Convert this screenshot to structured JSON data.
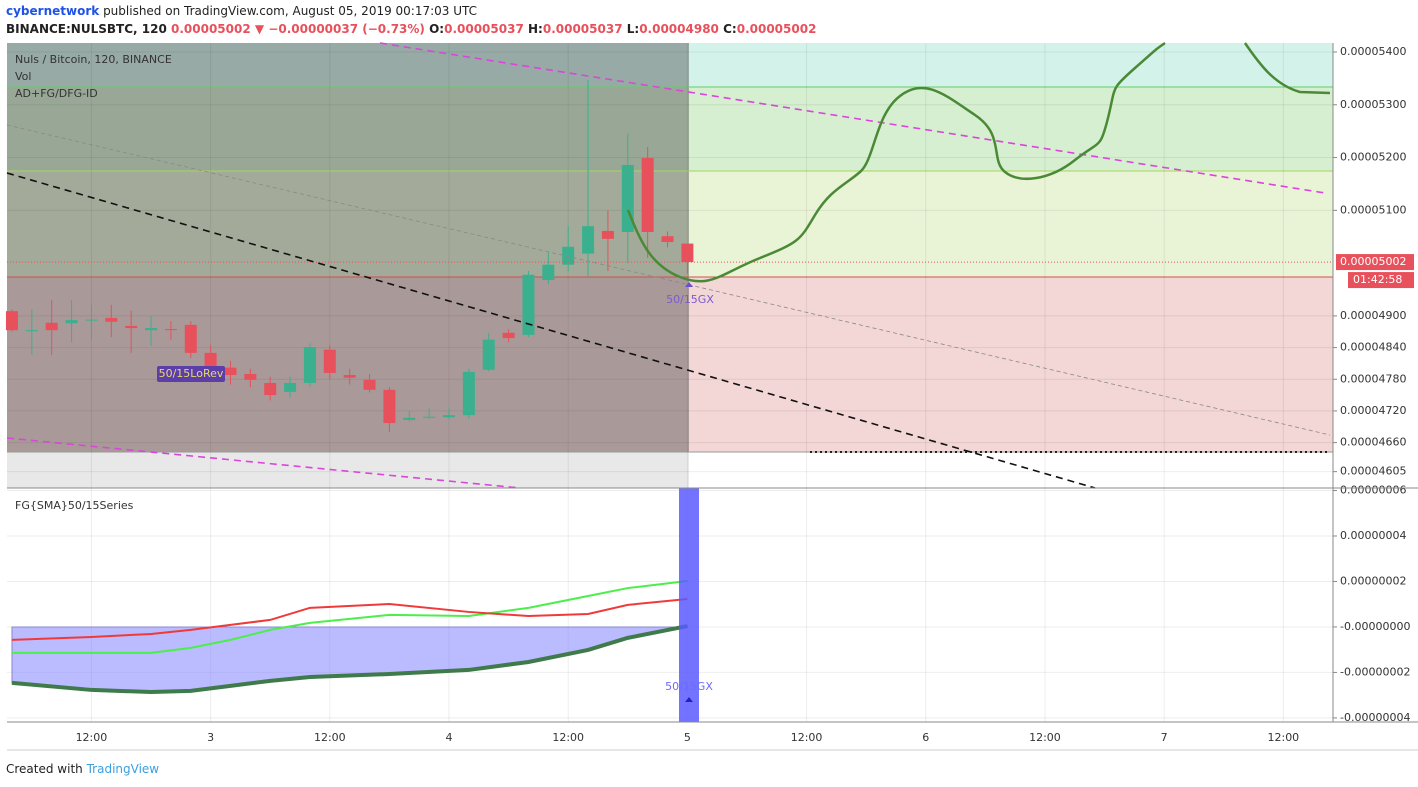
{
  "header": {
    "author": "cybernetwork",
    "published": "published on TradingView.com, August 05, 2019 00:17:03 UTC",
    "symbol": "BINANCE:NULSBTC, 120",
    "price": "0.00005002",
    "arrow": "▼",
    "change": "−0.00000037 (−0.73%)",
    "o_label": "O:",
    "o": "0.00005037",
    "h_label": "H:",
    "h": "0.00005037",
    "l_label": "L:",
    "l": "0.00004980",
    "c_label": "C:",
    "c": "0.00005002"
  },
  "footer": {
    "created": "Created with",
    "brand": "TradingView"
  },
  "chart_data": [
    {
      "type": "candlestick",
      "title": "Nuls / Bitcoin, 120, BINANCE",
      "indicators": [
        "Vol",
        "AD+FG/DFG-ID"
      ],
      "annotations": [
        "50/15LoRev",
        "50/15GX"
      ],
      "last_label": "0.00005002",
      "countdown": "01:42:58",
      "up_color": "#3bb08f",
      "down_color": "#e8505b",
      "grid": true,
      "x": [
        4,
        6,
        8,
        10,
        12,
        14,
        16,
        18,
        20,
        22,
        24,
        26,
        28,
        30,
        32,
        34,
        36,
        38,
        40,
        42,
        44,
        46,
        48,
        50,
        52,
        54,
        56,
        58,
        60,
        62,
        64,
        66,
        68,
        70,
        72
      ],
      "open": [
        4.909e-05,
        4.873e-05,
        4.887e-05,
        4.886e-05,
        4.892e-05,
        4.896e-05,
        4.881e-05,
        4.873e-05,
        4.875e-05,
        4.883e-05,
        4.83e-05,
        4.802e-05,
        4.79e-05,
        4.773e-05,
        4.756e-05,
        4.773e-05,
        4.836e-05,
        4.788e-05,
        4.779e-05,
        4.76e-05,
        4.703e-05,
        4.708e-05,
        4.708e-05,
        4.712e-05,
        4.798e-05,
        4.868e-05,
        4.864e-05,
        4.968e-05,
        4.997e-05,
        5.018e-05,
        5.061e-05,
        5.059e-05,
        5.199e-05,
        5.051e-05,
        5.037e-05
      ],
      "high": [
        4.912e-05,
        4.912e-05,
        4.93e-05,
        4.93e-05,
        4.921e-05,
        4.921e-05,
        4.91e-05,
        4.9e-05,
        4.89e-05,
        4.89e-05,
        4.845e-05,
        4.815e-05,
        4.8e-05,
        4.785e-05,
        4.785e-05,
        4.848e-05,
        4.845e-05,
        4.8e-05,
        4.79e-05,
        4.765e-05,
        4.72e-05,
        4.725e-05,
        4.725e-05,
        4.8e-05,
        4.868e-05,
        4.875e-05,
        4.985e-05,
        5.02e-05,
        5.07e-05,
        5.347e-05,
        5.1e-05,
        5.245e-05,
        5.22e-05,
        5.06e-05,
        5.037e-05
      ],
      "low": [
        4.87e-05,
        4.826e-05,
        4.826e-05,
        4.85e-05,
        4.855e-05,
        4.86e-05,
        4.83e-05,
        4.843e-05,
        4.855e-05,
        4.82e-05,
        4.79e-05,
        4.77e-05,
        4.765e-05,
        4.74e-05,
        4.745e-05,
        4.765e-05,
        4.78e-05,
        4.77e-05,
        4.755e-05,
        4.68e-05,
        4.7e-05,
        4.705e-05,
        4.705e-05,
        4.705e-05,
        4.795e-05,
        4.85e-05,
        4.86e-05,
        4.96e-05,
        4.985e-05,
        4.975e-05,
        4.985e-05,
        5e-05,
        5.01e-05,
        5.03e-05,
        4.98e-05
      ],
      "close": [
        4.873e-05,
        4.873e-05,
        4.873e-05,
        4.892e-05,
        4.893e-05,
        4.889e-05,
        4.877e-05,
        4.877e-05,
        4.874e-05,
        4.83e-05,
        4.802e-05,
        4.788e-05,
        4.779e-05,
        4.75e-05,
        4.773e-05,
        4.841e-05,
        4.792e-05,
        4.783e-05,
        4.76e-05,
        4.697e-05,
        4.707e-05,
        4.709e-05,
        4.712e-05,
        4.794e-05,
        4.855e-05,
        4.858e-05,
        4.978e-05,
        4.997e-05,
        5.031e-05,
        5.07e-05,
        5.046e-05,
        5.186e-05,
        5.059e-05,
        5.04e-05,
        5.002e-05
      ],
      "xlim": [
        3.5,
        137
      ],
      "xticks": [
        {
          "value": 12,
          "label": "12:00"
        },
        {
          "value": 24,
          "label": "3"
        },
        {
          "value": 36,
          "label": "12:00"
        },
        {
          "value": 48,
          "label": "4"
        },
        {
          "value": 60,
          "label": "12:00"
        },
        {
          "value": 72,
          "label": "5"
        },
        {
          "value": 84,
          "label": "12:00"
        },
        {
          "value": 96,
          "label": "6"
        },
        {
          "value": 108,
          "label": "12:00"
        },
        {
          "value": 120,
          "label": "7"
        },
        {
          "value": 132,
          "label": "12:00"
        }
      ],
      "ylim": [
        4.574e-05,
        5.417e-05
      ],
      "yticks": [
        {
          "value": 5.4e-05,
          "label": "0.00005400"
        },
        {
          "value": 5.3e-05,
          "label": "0.00005300"
        },
        {
          "value": 5.2e-05,
          "label": "0.00005200"
        },
        {
          "value": 5.1e-05,
          "label": "0.00005100"
        },
        {
          "value": 4.9e-05,
          "label": "0.00004900"
        },
        {
          "value": 4.84e-05,
          "label": "0.00004840"
        },
        {
          "value": 4.78e-05,
          "label": "0.00004780"
        },
        {
          "value": 4.72e-05,
          "label": "0.00004720"
        },
        {
          "value": 4.66e-05,
          "label": "0.00004660"
        },
        {
          "value": 4.605e-05,
          "label": "0.00004605"
        }
      ]
    },
    {
      "type": "line",
      "title": "FG{SMA}50/15Series",
      "annotation": "50/15GX",
      "grid": true,
      "x": [
        4,
        12,
        18,
        22,
        26,
        30,
        34,
        42,
        50,
        56,
        62,
        66,
        72
      ],
      "xlim": [
        3.5,
        137
      ],
      "series": [
        {
          "color": "#4cee4c",
          "values": [
            -1.14e-08,
            -1.14e-08,
            -1.14e-08,
            -9.2e-09,
            -5.7e-09,
            -1.3e-09,
            1.8e-09,
            5.3e-09,
            4.8e-09,
            8.4e-09,
            1.36e-08,
            1.71e-08,
            2.02e-08
          ]
        },
        {
          "color": "#f03a3a",
          "values": [
            -5.7e-09,
            -4.4e-09,
            -3.1e-09,
            -1.3e-09,
            9e-10,
            3.1e-09,
            8.4e-09,
            1.01e-08,
            6.6e-09,
            4.8e-09,
            5.7e-09,
            9.7e-09,
            1.23e-08
          ]
        },
        {
          "color": "#3f7a4a",
          "values": [
            -2.46e-08,
            -2.77e-08,
            -2.86e-08,
            -2.81e-08,
            -2.59e-08,
            -2.37e-08,
            -2.2e-08,
            -2.07e-08,
            -1.89e-08,
            -1.54e-08,
            -1.01e-08,
            -4.8e-09,
            4e-10
          ]
        }
      ],
      "ylim": [
        -4.18e-08,
        6.11e-08
      ],
      "yticks": [
        {
          "value": 6e-08,
          "label": "0.00000006"
        },
        {
          "value": 4e-08,
          "label": "0.00000004"
        },
        {
          "value": 2e-08,
          "label": "0.00000002"
        },
        {
          "value": 0,
          "label": "-0.00000000"
        },
        {
          "value": -2e-08,
          "label": "-0.00000002"
        },
        {
          "value": -4e-08,
          "label": "-0.00000004"
        }
      ]
    }
  ]
}
